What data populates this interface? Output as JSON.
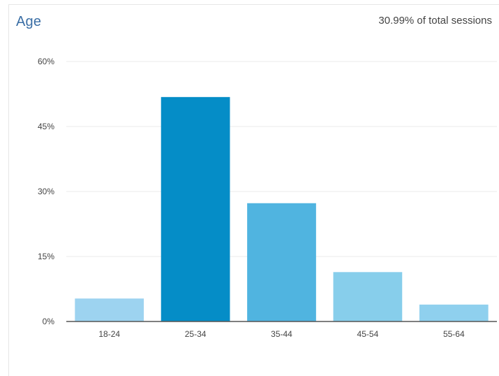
{
  "header": {
    "title": "Age",
    "summary": "30.99% of total sessions"
  },
  "chart_data": {
    "type": "bar",
    "title": "Age",
    "categories": [
      "18-24",
      "25-34",
      "35-44",
      "45-54",
      "55-64"
    ],
    "values": [
      5.3,
      51.8,
      27.3,
      11.4,
      3.9
    ],
    "unit": "%",
    "ylim": [
      0,
      60
    ],
    "yticks": [
      "0%",
      "15%",
      "30%",
      "45%",
      "60%"
    ],
    "ytick_values": [
      0,
      15,
      30,
      45,
      60
    ],
    "grid": true,
    "legend": "none",
    "colors": [
      "#9dd3f0",
      "#058dc7",
      "#50b4e0",
      "#87ceeb",
      "#8fd0ee"
    ]
  }
}
